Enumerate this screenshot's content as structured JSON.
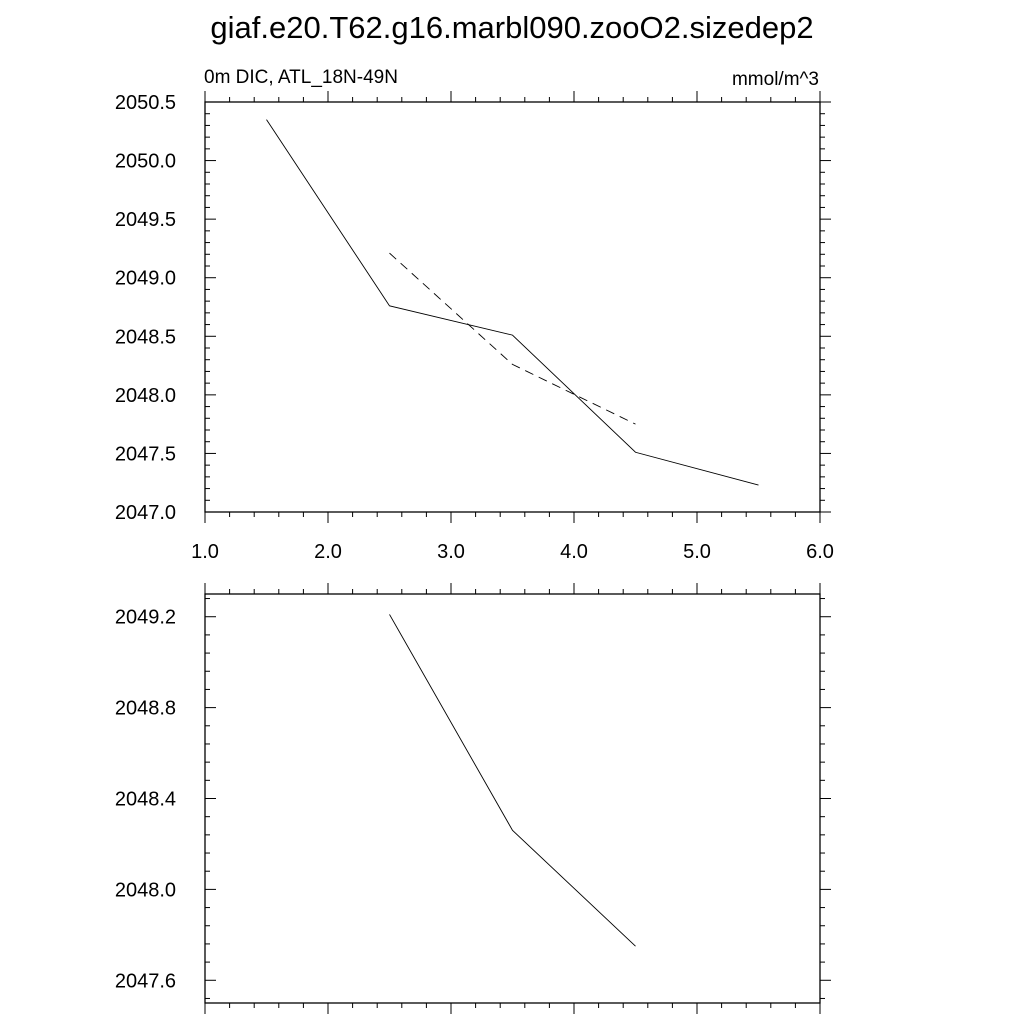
{
  "title": "giaf.e20.T62.g16.marbl090.zooO2.sizedep2",
  "chart_data": [
    {
      "type": "line",
      "subtitle_left": "0m DIC, ATL_18N-49N",
      "subtitle_right": "mmol/m^3",
      "xlim": [
        1.0,
        6.0
      ],
      "ylim": [
        2047.0,
        2050.5
      ],
      "x_ticks": [
        "1.0",
        "2.0",
        "3.0",
        "4.0",
        "5.0",
        "6.0"
      ],
      "y_ticks": [
        "2047.0",
        "2047.5",
        "2048.0",
        "2048.5",
        "2049.0",
        "2049.5",
        "2050.0",
        "2050.5"
      ],
      "series": [
        {
          "style": "solid",
          "x": [
            1.5,
            2.5,
            3.5,
            4.5,
            5.5
          ],
          "y": [
            2050.35,
            2048.76,
            2048.51,
            2047.51,
            2047.23
          ]
        },
        {
          "style": "dashed",
          "x": [
            2.5,
            3.5,
            4.5
          ],
          "y": [
            2049.21,
            2048.26,
            2047.75
          ]
        }
      ],
      "grid": false
    },
    {
      "type": "line",
      "xlim": [
        1.0,
        6.0
      ],
      "ylim": [
        2047.5,
        2049.3
      ],
      "x_ticks": [],
      "y_ticks": [
        "2047.6",
        "2048.0",
        "2048.4",
        "2048.8",
        "2049.2"
      ],
      "series": [
        {
          "style": "solid",
          "x": [
            2.5,
            3.5,
            4.5
          ],
          "y": [
            2049.21,
            2048.26,
            2047.75
          ]
        }
      ],
      "grid": false
    }
  ]
}
